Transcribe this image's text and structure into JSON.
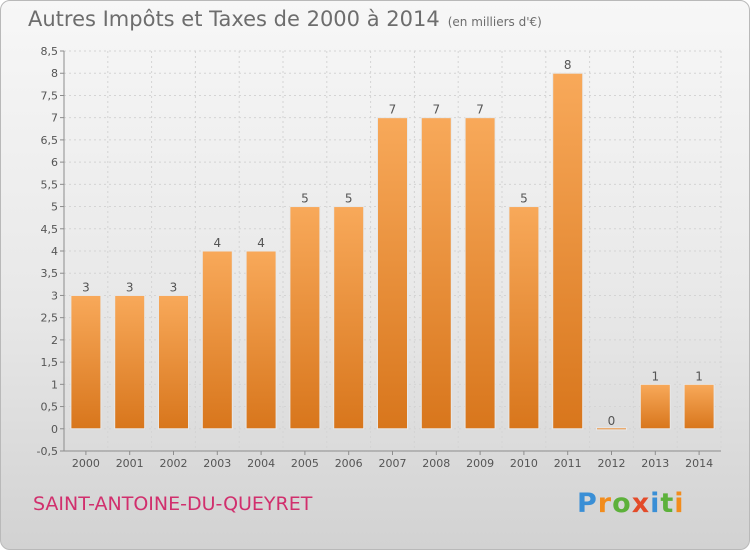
{
  "header": {
    "title": "Autres Impôts et Taxes de 2000 à 2014",
    "unit": "(en milliers d'€)"
  },
  "footer": {
    "commune": "SAINT-ANTOINE-DU-QUEYRET",
    "brand_letters": [
      "P",
      "r",
      "o",
      "x",
      "i",
      "t",
      "i"
    ]
  },
  "colors": {
    "bar_top": "#f8a95a",
    "bar_bottom": "#d8761c",
    "axis": "#8c8c8c",
    "grid": "#d4d4d4",
    "text": "#555555"
  },
  "chart_data": {
    "type": "bar",
    "categories": [
      "2000",
      "2001",
      "2002",
      "2003",
      "2004",
      "2005",
      "2006",
      "2007",
      "2008",
      "2009",
      "2010",
      "2011",
      "2012",
      "2013",
      "2014"
    ],
    "values": [
      3,
      3,
      3,
      4,
      4,
      5,
      5,
      7,
      7,
      7,
      5,
      8,
      0,
      1,
      1
    ],
    "data_labels": [
      "3",
      "3",
      "3",
      "4",
      "4",
      "5",
      "5",
      "7",
      "7",
      "7",
      "5",
      "8",
      "0",
      "1",
      "1"
    ],
    "title": "Autres Impôts et Taxes de 2000 à 2014",
    "ylim": [
      -0.5,
      8.5
    ],
    "y_ticks": [
      "-0,5",
      "0",
      "0,5",
      "1",
      "1,5",
      "2",
      "2,5",
      "3",
      "3,5",
      "4",
      "4,5",
      "5",
      "5,5",
      "6",
      "6,5",
      "7",
      "7,5",
      "8",
      "8,5"
    ],
    "y_tick_values": [
      -0.5,
      0,
      0.5,
      1,
      1.5,
      2,
      2.5,
      3,
      3.5,
      4,
      4.5,
      5,
      5.5,
      6,
      6.5,
      7,
      7.5,
      8,
      8.5
    ],
    "grid": true,
    "legend": "none"
  }
}
